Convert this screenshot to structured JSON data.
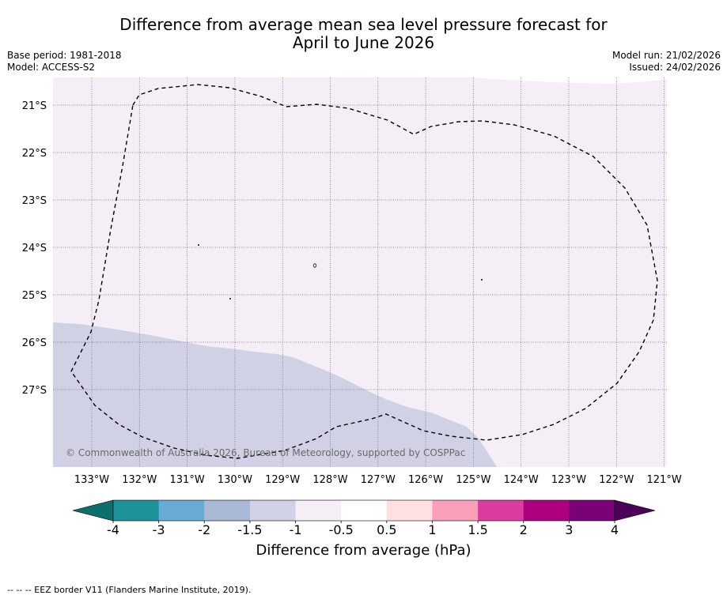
{
  "title": {
    "line1": "Difference from average mean sea level pressure forecast for",
    "line2": "April to June 2026"
  },
  "meta_left": {
    "base_period": "Base period: 1981-2018",
    "model": "Model: ACCESS-S2"
  },
  "meta_right": {
    "model_run": "Model run: 21/02/2026",
    "issued": "Issued: 24/02/2026"
  },
  "map": {
    "lat_labels": [
      "21°S",
      "22°S",
      "23°S",
      "24°S",
      "25°S",
      "26°S",
      "27°S"
    ],
    "lon_labels": [
      "133°W",
      "132°W",
      "131°W",
      "130°W",
      "129°W",
      "128°W",
      "127°W",
      "126°W",
      "125°W",
      "124°W",
      "123°W",
      "122°W",
      "121°W"
    ],
    "copyright": "© Commonwealth of Australia 2026, Bureau of Meteorology, supported by COSPPac",
    "colors": {
      "light_pink": "#f5eef6",
      "lavender": "#d1d1e6",
      "eez_line": "#000000"
    }
  },
  "colorbar": {
    "ticks": [
      "-4",
      "-3",
      "-2",
      "-1.5",
      "-1",
      "-0.5",
      "0.5",
      "1",
      "1.5",
      "2",
      "3",
      "4"
    ],
    "colors": [
      "#0d6e6e",
      "#1d9399",
      "#68abd3",
      "#a8b8d5",
      "#d1d1e6",
      "#f5eef6",
      "#ffffff",
      "#ffe0e0",
      "#f99fb9",
      "#dc3c9f",
      "#ad007e",
      "#7a0177",
      "#4b0157"
    ],
    "label": "Difference from average (hPa)"
  },
  "footnote": "--  --  -- EEZ border V11 (Flanders Marine Institute, 2019)."
}
